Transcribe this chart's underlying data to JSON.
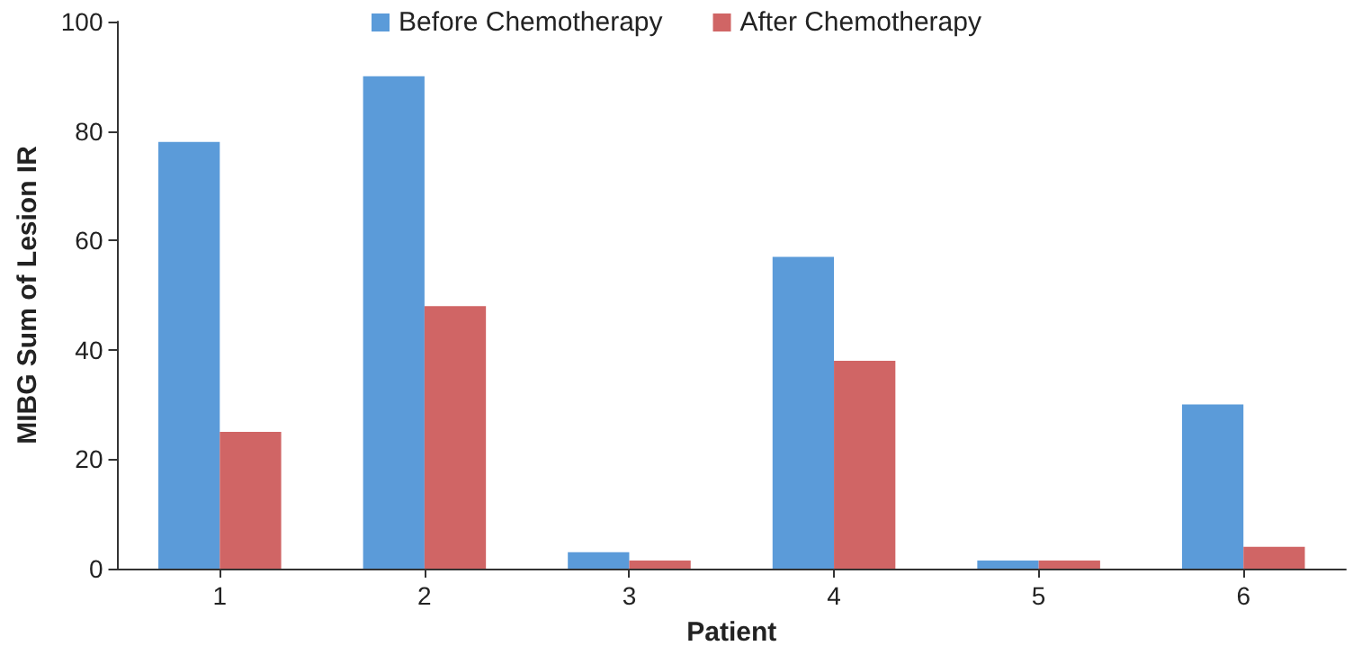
{
  "chart_data": {
    "type": "bar",
    "xlabel": "Patient",
    "ylabel": "MIBG Sum of Lesion IR",
    "categories": [
      "1",
      "2",
      "3",
      "4",
      "5",
      "6"
    ],
    "series": [
      {
        "name": "Before Chemotherapy",
        "color": "#5b9bd9",
        "values": [
          78,
          90,
          3,
          57,
          1.5,
          30
        ]
      },
      {
        "name": "After Chemotherapy",
        "color": "#d06565",
        "values": [
          25,
          48,
          1.5,
          38,
          1.5,
          4
        ]
      }
    ],
    "ylim": [
      0,
      100
    ],
    "yticks": [
      0,
      20,
      40,
      60,
      80,
      100
    ],
    "grid": false,
    "legend": "top"
  }
}
